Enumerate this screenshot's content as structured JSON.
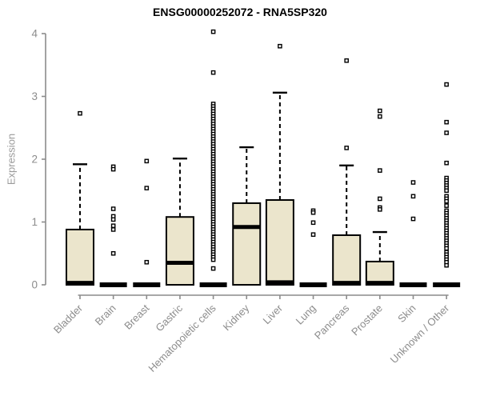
{
  "page": {
    "background": "#ffffff"
  },
  "chart_data": {
    "type": "boxplot",
    "title": "ENSG00000252072 - RNA5SP320",
    "ylabel": "Expression",
    "xlabel": "",
    "ylim": [
      0,
      4
    ],
    "yticks": [
      0,
      1,
      2,
      3,
      4
    ],
    "grid": false,
    "legend": "none",
    "box_fill": "#ebe5cc",
    "box_stroke": "#000000",
    "axis_color": "#8c8c8c",
    "tick_label_color": "#8c8c8c",
    "categories": [
      "Bladder",
      "Brain",
      "Breast",
      "Gastric",
      "Hematopoietic cells",
      "Kidney",
      "Liver",
      "Lung",
      "Pancreas",
      "Prostate",
      "Skin",
      "Unknown / Other"
    ],
    "series": [
      {
        "category": "Bladder",
        "q1": 0,
        "median": 0.03,
        "q3": 0.88,
        "whisker_low": 0,
        "whisker_high": 1.92,
        "outliers": [
          2.73
        ]
      },
      {
        "category": "Brain",
        "q1": 0,
        "median": 0,
        "q3": 0,
        "whisker_low": 0,
        "whisker_high": 0,
        "outliers": [
          1.88,
          1.84,
          1.21,
          1.09,
          1.04,
          0.94,
          0.88,
          0.5
        ]
      },
      {
        "category": "Breast",
        "q1": 0,
        "median": 0,
        "q3": 0,
        "whisker_low": 0,
        "whisker_high": 0,
        "outliers": [
          1.97,
          1.54,
          0.36
        ]
      },
      {
        "category": "Gastric",
        "q1": 0,
        "median": 0.35,
        "q3": 1.08,
        "whisker_low": 0,
        "whisker_high": 2.01,
        "outliers": []
      },
      {
        "category": "Hematopoietic cells",
        "q1": 0,
        "median": 0,
        "q3": 0,
        "whisker_low": 0,
        "whisker_high": 0,
        "outliers": [
          4.03,
          3.38,
          2.88,
          2.84,
          2.8,
          2.76,
          2.72,
          2.68,
          2.64,
          2.6,
          2.56,
          2.52,
          2.48,
          2.44,
          2.4,
          2.36,
          2.32,
          2.28,
          2.24,
          2.2,
          2.16,
          2.12,
          2.08,
          2.04,
          2.0,
          1.96,
          1.92,
          1.88,
          1.84,
          1.8,
          1.76,
          1.72,
          1.68,
          1.64,
          1.6,
          1.56,
          1.52,
          1.48,
          1.44,
          1.4,
          1.36,
          1.32,
          1.28,
          1.24,
          1.2,
          1.16,
          1.12,
          1.08,
          1.04,
          1.0,
          0.96,
          0.92,
          0.88,
          0.84,
          0.8,
          0.76,
          0.72,
          0.68,
          0.64,
          0.6,
          0.56,
          0.52,
          0.48,
          0.44,
          0.4,
          0.26
        ]
      },
      {
        "category": "Kidney",
        "q1": 0,
        "median": 0.92,
        "q3": 1.3,
        "whisker_low": 0,
        "whisker_high": 2.19,
        "outliers": []
      },
      {
        "category": "Liver",
        "q1": 0,
        "median": 0.04,
        "q3": 1.35,
        "whisker_low": 0,
        "whisker_high": 3.06,
        "outliers": [
          3.8
        ]
      },
      {
        "category": "Lung",
        "q1": 0,
        "median": 0,
        "q3": 0,
        "whisker_low": 0,
        "whisker_high": 0,
        "outliers": [
          1.18,
          1.15,
          0.99,
          0.8
        ]
      },
      {
        "category": "Pancreas",
        "q1": 0,
        "median": 0.03,
        "q3": 0.79,
        "whisker_low": 0,
        "whisker_high": 1.9,
        "outliers": [
          3.57,
          2.18
        ]
      },
      {
        "category": "Prostate",
        "q1": 0,
        "median": 0.03,
        "q3": 0.37,
        "whisker_low": 0,
        "whisker_high": 0.84,
        "outliers": [
          2.77,
          2.68,
          1.82,
          1.37,
          1.23,
          1.2
        ]
      },
      {
        "category": "Skin",
        "q1": 0,
        "median": 0,
        "q3": 0,
        "whisker_low": 0,
        "whisker_high": 0,
        "outliers": [
          1.63,
          1.41,
          1.05
        ]
      },
      {
        "category": "Unknown / Other",
        "q1": 0,
        "median": 0,
        "q3": 0,
        "whisker_low": 0,
        "whisker_high": 0,
        "outliers": [
          3.19,
          2.59,
          2.42,
          1.94,
          1.7,
          1.66,
          1.62,
          1.58,
          1.54,
          1.5,
          1.41,
          1.37,
          1.33,
          1.26,
          1.18,
          1.14,
          1.1,
          1.06,
          1.02,
          0.98,
          0.94,
          0.9,
          0.86,
          0.82,
          0.78,
          0.74,
          0.7,
          0.66,
          0.62,
          0.58,
          0.52,
          0.48,
          0.44,
          0.4,
          0.36,
          0.31
        ]
      }
    ]
  }
}
